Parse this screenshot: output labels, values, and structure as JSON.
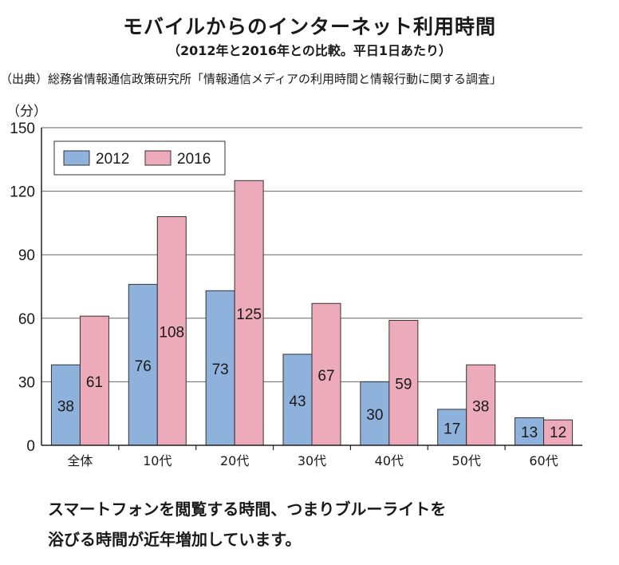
{
  "header": {
    "title": "モバイルからのインターネット利用時間",
    "subtitle": "（2012年と2016年との比較。平日1日あたり）",
    "source": "（出典）総務省情報通信政策研究所「情報通信メディアの利用時間と情報行動に関する調査」"
  },
  "chart_data": {
    "type": "bar",
    "categories": [
      "全体",
      "10代",
      "20代",
      "30代",
      "40代",
      "50代",
      "60代"
    ],
    "series": [
      {
        "name": "2012",
        "values": [
          38,
          76,
          73,
          43,
          30,
          17,
          13
        ],
        "color": "#8fb2dc"
      },
      {
        "name": "2016",
        "values": [
          61,
          108,
          125,
          67,
          59,
          38,
          12
        ],
        "color": "#ecaabb"
      }
    ],
    "ylabel": "（分）",
    "ylim": [
      0,
      150
    ],
    "yticks": [
      0,
      30,
      60,
      90,
      120,
      150
    ],
    "grid": true,
    "legend": "top-left"
  },
  "caption": {
    "line1": "スマートフォンを閲覧する時間、つまりブルーライトを",
    "line2": "浴びる時間が近年増加しています。"
  }
}
